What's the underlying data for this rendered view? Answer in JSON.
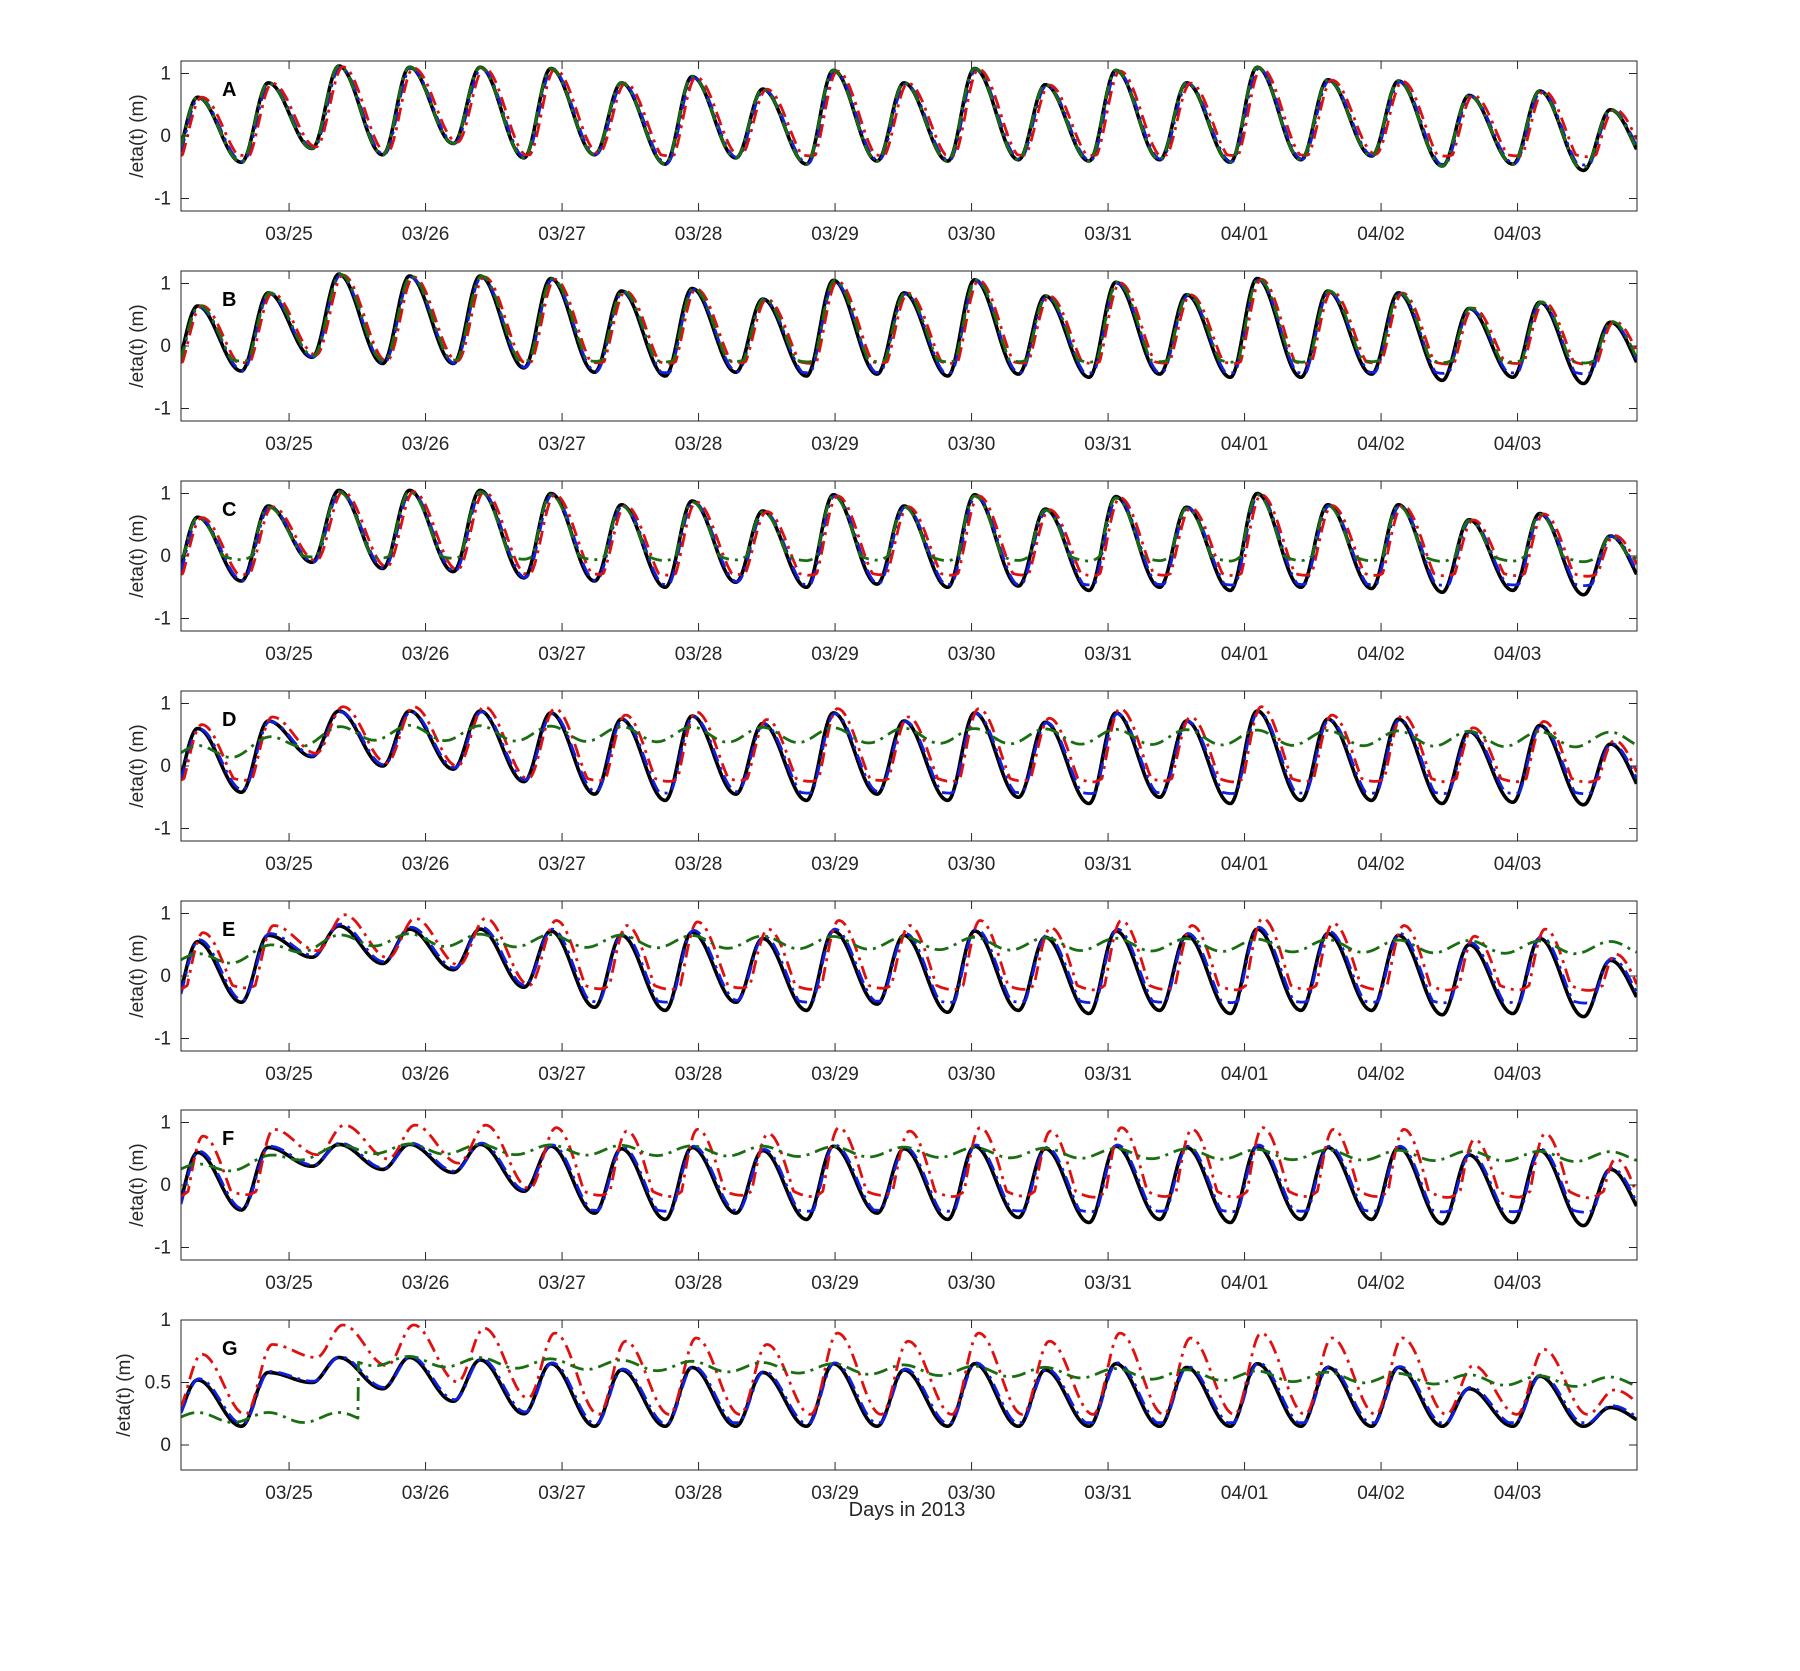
{
  "figure": {
    "xlabel": "Days in 2013"
  },
  "colors": {
    "observed": "#000000",
    "blue": "#1020e0",
    "red": "#e01010",
    "green": "#1a6e12",
    "axis": "#262626"
  },
  "chart_data": [
    {
      "type": "line",
      "panel": "A",
      "ylabel": "/eta(t) (m)",
      "x_range": [
        "03/24 05:00",
        "04/03 21:00"
      ],
      "ylim": [
        -1.2,
        1.2
      ],
      "yticks": [
        "-1",
        "0",
        "1"
      ],
      "xticks": [
        "03/25",
        "03/26",
        "03/27",
        "03/28",
        "03/29",
        "03/30",
        "03/31",
        "04/01",
        "04/02",
        "04/03"
      ],
      "highs": [
        0.62,
        0.85,
        1.12,
        1.1,
        1.1,
        1.08,
        0.85,
        0.95,
        0.75,
        1.05,
        0.85,
        1.08,
        0.82,
        1.05,
        0.85,
        1.1,
        0.9,
        0.88,
        0.65,
        0.72,
        0.42
      ],
      "lows": [
        -0.55,
        -0.42,
        -0.2,
        -0.3,
        -0.12,
        -0.35,
        -0.3,
        -0.45,
        -0.35,
        -0.45,
        -0.4,
        -0.4,
        -0.38,
        -0.4,
        -0.38,
        -0.42,
        -0.38,
        -0.32,
        -0.48,
        -0.45,
        -0.55
      ],
      "series": [
        {
          "key": "observed",
          "floor": -9,
          "hl": 1,
          "lag": 0,
          "offset": 0
        },
        {
          "key": "blue",
          "floor": -0.45,
          "hl": 0.98,
          "lag": 0.01,
          "offset": 0
        },
        {
          "key": "red",
          "floor": -0.3,
          "hl": 0.97,
          "lag": 0.03,
          "offset": 0.02
        },
        {
          "key": "green",
          "floor": -0.48,
          "hl": 1,
          "lag": 0,
          "offset": 0
        }
      ]
    },
    {
      "type": "line",
      "panel": "B",
      "ylabel": "/eta(t) (m)",
      "x_range": [
        "03/24 05:00",
        "04/03 21:00"
      ],
      "ylim": [
        -1.2,
        1.2
      ],
      "yticks": [
        "-1",
        "0",
        "1"
      ],
      "xticks": [
        "03/25",
        "03/26",
        "03/27",
        "03/28",
        "03/29",
        "03/30",
        "03/31",
        "04/01",
        "04/02",
        "04/03"
      ],
      "highs": [
        0.64,
        0.85,
        1.15,
        1.12,
        1.12,
        1.08,
        0.88,
        0.92,
        0.75,
        1.05,
        0.85,
        1.06,
        0.8,
        1.02,
        0.82,
        1.08,
        0.88,
        0.85,
        0.6,
        0.7,
        0.38
      ],
      "lows": [
        -0.52,
        -0.4,
        -0.18,
        -0.28,
        -0.28,
        -0.35,
        -0.42,
        -0.48,
        -0.42,
        -0.48,
        -0.45,
        -0.48,
        -0.45,
        -0.5,
        -0.45,
        -0.5,
        -0.5,
        -0.45,
        -0.55,
        -0.5,
        -0.6
      ],
      "series": [
        {
          "key": "observed",
          "floor": -9,
          "hl": 1,
          "lag": 0,
          "offset": 0
        },
        {
          "key": "blue",
          "floor": -0.42,
          "hl": 0.98,
          "lag": 0.01,
          "offset": 0
        },
        {
          "key": "red",
          "floor": -0.25,
          "hl": 0.96,
          "lag": 0.03,
          "offset": 0.03
        },
        {
          "key": "green",
          "floor": -0.22,
          "hl": 0.98,
          "lag": 0.01,
          "offset": 0.02
        }
      ]
    },
    {
      "type": "line",
      "panel": "C",
      "ylabel": "/eta(t) (m)",
      "x_range": [
        "03/24 05:00",
        "04/03 21:00"
      ],
      "ylim": [
        -1.2,
        1.2
      ],
      "yticks": [
        "-1",
        "0",
        "1"
      ],
      "xticks": [
        "03/25",
        "03/26",
        "03/27",
        "03/28",
        "03/29",
        "03/30",
        "03/31",
        "04/01",
        "04/02",
        "04/03"
      ],
      "highs": [
        0.62,
        0.8,
        1.05,
        1.05,
        1.05,
        1.0,
        0.82,
        0.88,
        0.72,
        0.98,
        0.8,
        0.98,
        0.75,
        0.95,
        0.78,
        1.0,
        0.82,
        0.82,
        0.58,
        0.68,
        0.32
      ],
      "lows": [
        -0.55,
        -0.4,
        -0.1,
        -0.2,
        -0.25,
        -0.35,
        -0.4,
        -0.5,
        -0.42,
        -0.5,
        -0.45,
        -0.5,
        -0.48,
        -0.55,
        -0.5,
        -0.55,
        -0.5,
        -0.52,
        -0.58,
        -0.55,
        -0.62
      ],
      "series": [
        {
          "key": "observed",
          "floor": -9,
          "hl": 1,
          "lag": 0,
          "offset": 0
        },
        {
          "key": "blue",
          "floor": -0.45,
          "hl": 0.98,
          "lag": 0.01,
          "offset": 0
        },
        {
          "key": "red",
          "floor": -0.28,
          "hl": 0.96,
          "lag": 0.03,
          "offset": 0.02
        },
        {
          "key": "green",
          "floor": 0.0,
          "hl": 0.98,
          "lag": 0.0,
          "offset": 0
        }
      ]
    },
    {
      "type": "line",
      "panel": "D",
      "ylabel": "/eta(t) (m)",
      "x_range": [
        "03/24 05:00",
        "04/03 21:00"
      ],
      "ylim": [
        -1.2,
        1.2
      ],
      "yticks": [
        "-1",
        "0",
        "1"
      ],
      "xticks": [
        "03/25",
        "03/26",
        "03/27",
        "03/28",
        "03/29",
        "03/30",
        "03/31",
        "04/01",
        "04/02",
        "04/03"
      ],
      "highs": [
        0.6,
        0.72,
        0.88,
        0.88,
        0.88,
        0.85,
        0.75,
        0.8,
        0.68,
        0.85,
        0.72,
        0.85,
        0.7,
        0.85,
        0.72,
        0.88,
        0.75,
        0.75,
        0.55,
        0.65,
        0.35
      ],
      "lows": [
        -0.55,
        -0.42,
        0.15,
        0.0,
        -0.05,
        -0.25,
        -0.45,
        -0.55,
        -0.45,
        -0.55,
        -0.45,
        -0.55,
        -0.5,
        -0.6,
        -0.5,
        -0.6,
        -0.55,
        -0.55,
        -0.6,
        -0.58,
        -0.62
      ],
      "series": [
        {
          "key": "observed",
          "floor": -9,
          "hl": 1,
          "lag": 0,
          "offset": 0
        },
        {
          "key": "blue",
          "floor": -0.42,
          "hl": 0.96,
          "lag": 0.01,
          "offset": 0.02
        },
        {
          "key": "red",
          "floor": -0.2,
          "hl": 1.02,
          "lag": 0.03,
          "offset": 0.05
        },
        {
          "key": "green",
          "smooth": true,
          "level": [
            0.2,
            0.55,
            0.5,
            0.42
          ],
          "amp": 0.12
        }
      ]
    },
    {
      "type": "line",
      "panel": "E",
      "ylabel": "/eta(t) (m)",
      "x_range": [
        "03/24 05:00",
        "04/03 21:00"
      ],
      "ylim": [
        -1.2,
        1.2
      ],
      "yticks": [
        "-1",
        "0",
        "1"
      ],
      "xticks": [
        "03/25",
        "03/26",
        "03/27",
        "03/28",
        "03/29",
        "03/30",
        "03/31",
        "04/01",
        "04/02",
        "04/03"
      ],
      "highs": [
        0.55,
        0.65,
        0.8,
        0.75,
        0.75,
        0.72,
        0.65,
        0.7,
        0.6,
        0.72,
        0.65,
        0.72,
        0.62,
        0.72,
        0.65,
        0.75,
        0.68,
        0.65,
        0.5,
        0.6,
        0.25
      ],
      "lows": [
        -0.6,
        -0.42,
        0.3,
        0.2,
        0.1,
        -0.18,
        -0.5,
        -0.55,
        -0.42,
        -0.55,
        -0.45,
        -0.58,
        -0.55,
        -0.6,
        -0.55,
        -0.6,
        -0.55,
        -0.55,
        -0.62,
        -0.6,
        -0.65
      ],
      "series": [
        {
          "key": "observed",
          "floor": -9,
          "hl": 1,
          "lag": 0,
          "offset": 0
        },
        {
          "key": "blue",
          "floor": -0.4,
          "hl": 1.0,
          "lag": 0.01,
          "offset": 0.03
        },
        {
          "key": "red",
          "floor": -0.15,
          "hl": 1.15,
          "lag": 0.04,
          "offset": 0.06
        },
        {
          "key": "green",
          "smooth": true,
          "level": [
            0.25,
            0.6,
            0.55,
            0.45
          ],
          "amp": 0.1
        }
      ]
    },
    {
      "type": "line",
      "panel": "F",
      "ylabel": "/eta(t) (m)",
      "x_range": [
        "03/24 05:00",
        "04/03 21:00"
      ],
      "ylim": [
        -1.2,
        1.2
      ],
      "yticks": [
        "-1",
        "0",
        "1"
      ],
      "xticks": [
        "03/25",
        "03/26",
        "03/27",
        "03/28",
        "03/29",
        "03/30",
        "03/31",
        "04/01",
        "04/02",
        "04/03"
      ],
      "highs": [
        0.52,
        0.6,
        0.65,
        0.65,
        0.65,
        0.62,
        0.58,
        0.6,
        0.55,
        0.62,
        0.58,
        0.62,
        0.58,
        0.62,
        0.6,
        0.62,
        0.6,
        0.6,
        0.48,
        0.55,
        0.25
      ],
      "lows": [
        -0.6,
        -0.4,
        0.3,
        0.25,
        0.2,
        -0.1,
        -0.45,
        -0.55,
        -0.45,
        -0.55,
        -0.45,
        -0.55,
        -0.52,
        -0.6,
        -0.55,
        -0.6,
        -0.55,
        -0.55,
        -0.62,
        -0.6,
        -0.65
      ],
      "series": [
        {
          "key": "observed",
          "floor": -9,
          "hl": 1,
          "lag": 0,
          "offset": 0
        },
        {
          "key": "blue",
          "floor": -0.4,
          "hl": 1.0,
          "lag": 0.01,
          "offset": 0.02
        },
        {
          "key": "red",
          "floor": -0.1,
          "hl": 1.35,
          "lag": 0.04,
          "offset": 0.08
        },
        {
          "key": "green",
          "smooth": true,
          "level": [
            0.25,
            0.6,
            0.55,
            0.45
          ],
          "amp": 0.08
        }
      ]
    },
    {
      "type": "line",
      "panel": "G",
      "ylabel": "/eta(t) (m)",
      "x_range": [
        "03/24 05:00",
        "04/03 21:00"
      ],
      "ylim": [
        -0.2,
        1.0
      ],
      "yticks": [
        "0",
        "0.5",
        "1"
      ],
      "xticks": [
        "03/25",
        "03/26",
        "03/27",
        "03/28",
        "03/29",
        "03/30",
        "03/31",
        "04/01",
        "04/02",
        "04/03"
      ],
      "highs": [
        0.52,
        0.58,
        0.7,
        0.7,
        0.68,
        0.65,
        0.6,
        0.62,
        0.58,
        0.65,
        0.6,
        0.65,
        0.6,
        0.65,
        0.62,
        0.65,
        0.62,
        0.62,
        0.45,
        0.55,
        0.3
      ],
      "lows": [
        0.15,
        0.15,
        0.5,
        0.45,
        0.35,
        0.25,
        0.15,
        0.15,
        0.15,
        0.15,
        0.15,
        0.15,
        0.15,
        0.15,
        0.15,
        0.15,
        0.15,
        0.15,
        0.15,
        0.15,
        0.15
      ],
      "series": [
        {
          "key": "observed",
          "floor": 0.14,
          "hl": 1,
          "lag": 0,
          "offset": 0,
          "gap": [
            9.55,
            10.05
          ]
        },
        {
          "key": "blue",
          "floor": 0.18,
          "hl": 0.98,
          "lag": 0.01,
          "offset": 0.02
        },
        {
          "key": "red",
          "floor": 0.2,
          "hl": 1.3,
          "lag": 0.03,
          "offset": 0.05
        },
        {
          "key": "green",
          "smooth": true,
          "level": [
            0.22,
            0.7,
            0.6,
            0.5
          ],
          "amp": 0.04,
          "startFlat": 1.3
        }
      ]
    }
  ]
}
